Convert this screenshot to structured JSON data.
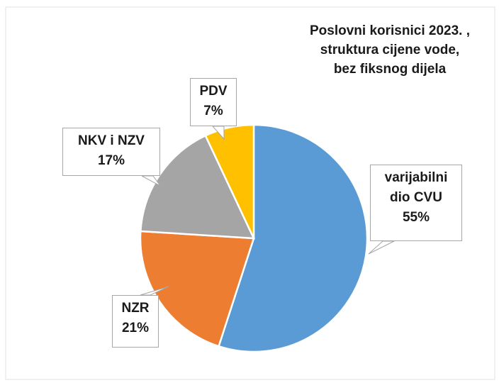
{
  "chart_data": {
    "type": "pie",
    "title": "Poslovni korisnici 2023. ,\nstruktura cijene vode,\nbez fiksnog dijela",
    "categories": [
      "varijabilni dio CVU",
      "NZR",
      "NKV i NZV",
      "PDV"
    ],
    "values": [
      55,
      21,
      17,
      7
    ],
    "value_labels": [
      "55%",
      "21%",
      "17%",
      "7%"
    ],
    "colors": [
      "#5b9bd5",
      "#ed7d31",
      "#a5a5a5",
      "#ffc000"
    ]
  }
}
